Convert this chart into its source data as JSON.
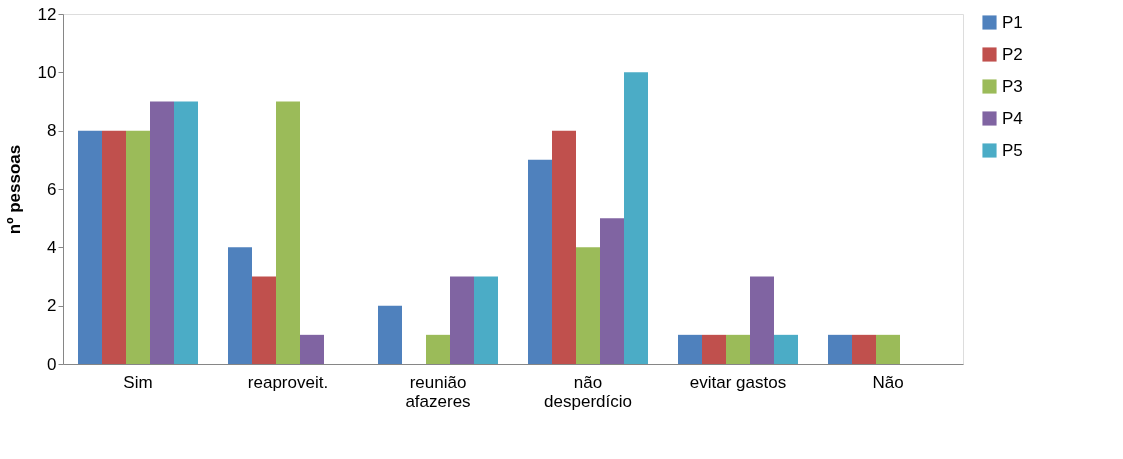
{
  "chart_data": {
    "type": "bar",
    "ylabel": "nº pessoas",
    "categories": [
      "Sim",
      "reaproveit.",
      "reunião\nafazeres",
      "não\ndesperdício",
      "evitar gastos",
      "Não"
    ],
    "series": [
      {
        "name": "P1",
        "color": "#4f81bd",
        "values": [
          8,
          4,
          2,
          7,
          1,
          1
        ]
      },
      {
        "name": "P2",
        "color": "#c0504d",
        "values": [
          8,
          3,
          0,
          8,
          1,
          1
        ]
      },
      {
        "name": "P3",
        "color": "#9bbb59",
        "values": [
          8,
          9,
          1,
          4,
          1,
          1
        ]
      },
      {
        "name": "P4",
        "color": "#8064a2",
        "values": [
          9,
          1,
          3,
          5,
          3,
          0
        ]
      },
      {
        "name": "P5",
        "color": "#4bacc6",
        "values": [
          9,
          0,
          3,
          10,
          1,
          0
        ]
      }
    ],
    "ylim": [
      0,
      12
    ],
    "yticks": [
      0,
      2,
      4,
      6,
      8,
      10,
      12
    ],
    "grid": false,
    "legend": "right"
  }
}
